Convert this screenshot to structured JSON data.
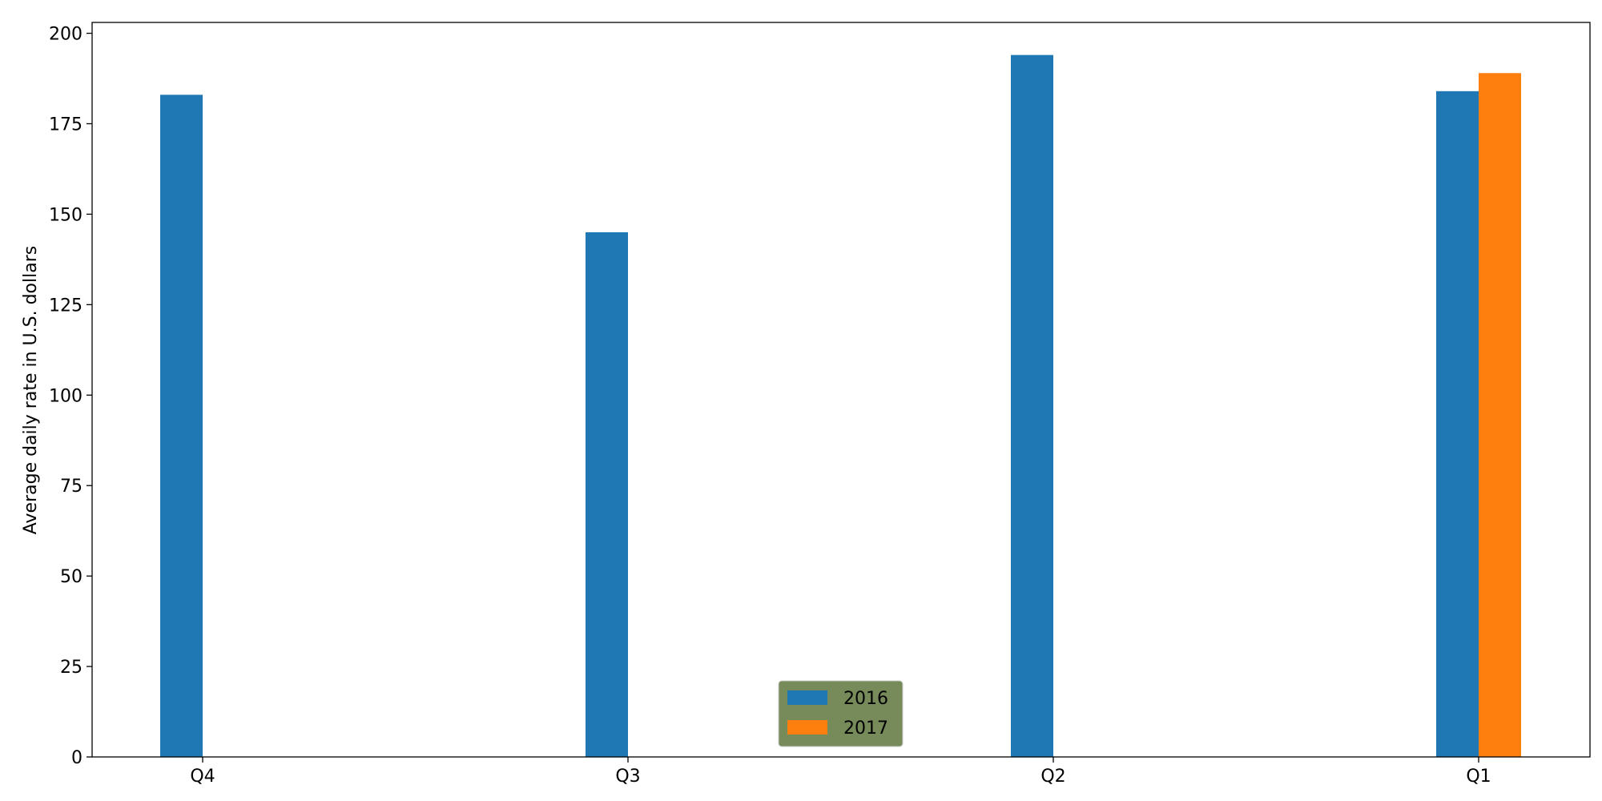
{
  "chart_data": {
    "type": "bar",
    "title": "",
    "xlabel": "",
    "ylabel": "Average daily rate in U.S. dollars",
    "categories": [
      "Q4",
      "Q3",
      "Q2",
      "Q1"
    ],
    "series": [
      {
        "name": "2016",
        "color": "#1f77b4",
        "values": [
          183,
          145,
          194,
          184
        ]
      },
      {
        "name": "2017",
        "color": "#ff7f0e",
        "values": [
          null,
          null,
          null,
          189
        ]
      }
    ],
    "ylim": [
      0,
      203
    ],
    "yticks": [
      0,
      25,
      50,
      75,
      100,
      125,
      150,
      175,
      200
    ],
    "ytick_labels": [
      "0",
      "25",
      "50",
      "75",
      "100",
      "125",
      "150",
      "175",
      "200"
    ],
    "grid": false,
    "legend": {
      "placement": "lower-center",
      "background": "#768a5a",
      "entries": [
        "2016",
        "2017"
      ]
    }
  }
}
